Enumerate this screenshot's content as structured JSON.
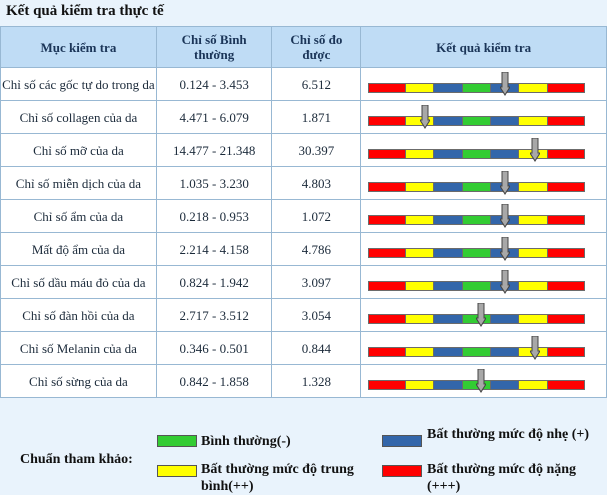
{
  "title": "Kết quả kiểm tra thực tế",
  "headers": [
    "Mục kiểm tra",
    "Chỉ số Bình thường",
    "Chỉ số đo được",
    "Kết quả kiểm tra"
  ],
  "colors": {
    "red": "#ff0000",
    "yellow": "#ffff00",
    "green": "#33cc33",
    "blue": "#3366aa"
  },
  "rows": [
    {
      "name": "Chỉ số các gốc tự do trong da",
      "normal": "0.124 - 3.453",
      "measured": "6.512",
      "position": 0.63
    },
    {
      "name": "Chỉ số collagen của da",
      "normal": "4.471 - 6.079",
      "measured": "1.871",
      "position": 0.26
    },
    {
      "name": "Chỉ số mỡ của da",
      "normal": "14.477 - 21.348",
      "measured": "30.397",
      "position": 0.77
    },
    {
      "name": "Chỉ số miễn dịch của da",
      "normal": "1.035 - 3.230",
      "measured": "4.803",
      "position": 0.63
    },
    {
      "name": "Chỉ số ẩm của da",
      "normal": "0.218 - 0.953",
      "measured": "1.072",
      "position": 0.63
    },
    {
      "name": "Mất độ ẩm của da",
      "normal": "2.214 - 4.158",
      "measured": "4.786",
      "position": 0.63
    },
    {
      "name": "Chỉ số dầu máu đỏ của da",
      "normal": "0.824 - 1.942",
      "measured": "3.097",
      "position": 0.63
    },
    {
      "name": "Chỉ số đàn hồi của da",
      "normal": "2.717 - 3.512",
      "measured": "3.054",
      "position": 0.52
    },
    {
      "name": "Chỉ số Melanin của da",
      "normal": "0.346 - 0.501",
      "measured": "0.844",
      "position": 0.77
    },
    {
      "name": "Chỉ số sừng của da",
      "normal": "0.842 - 1.858",
      "measured": "1.328",
      "position": 0.52
    }
  ],
  "legend": {
    "title": "Chuẩn tham khảo:",
    "items": [
      {
        "label": "Bình thường(-)",
        "color": "#33cc33"
      },
      {
        "label": "Bất thường mức độ nhẹ (+)",
        "color": "#3366aa"
      },
      {
        "label": "Bất thường mức độ trung bình(++)",
        "color": "#ffff00"
      },
      {
        "label": "Bất thường mức độ nặng (+++)",
        "color": "#ff0000"
      }
    ]
  }
}
